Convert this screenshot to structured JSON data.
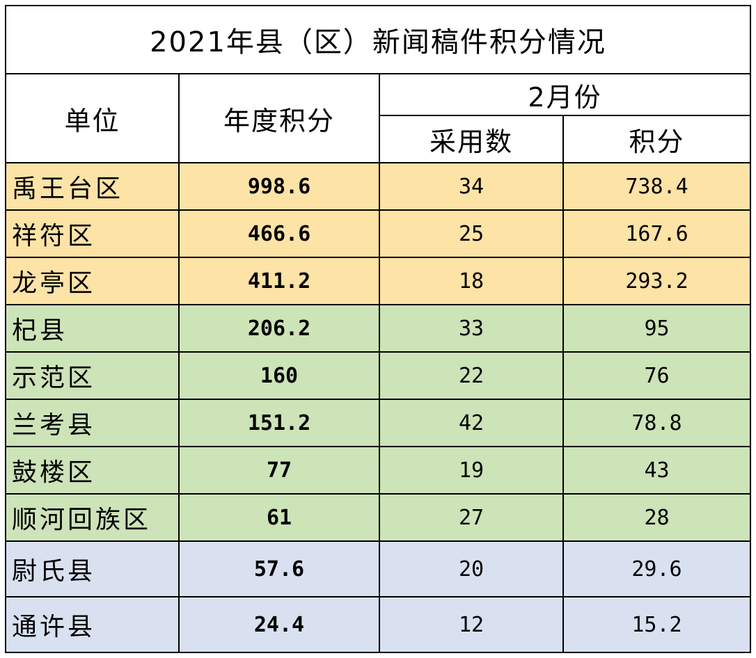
{
  "title": "2021年县（区）新闻稿件积分情况",
  "headers": {
    "unit": "单位",
    "annual_score": "年度积分",
    "month": "2月份",
    "adopted": "采用数",
    "score": "积分"
  },
  "colors": {
    "tier1": "#fde3a6",
    "tier2": "#cde3b8",
    "tier3": "#d9e0f0"
  },
  "rows": [
    {
      "unit": "禹王台区",
      "annual": "998.6",
      "adopted": "34",
      "score": "738.4",
      "tier": "tier1"
    },
    {
      "unit": "祥符区",
      "annual": "466.6",
      "adopted": "25",
      "score": "167.6",
      "tier": "tier1"
    },
    {
      "unit": "龙亭区",
      "annual": "411.2",
      "adopted": "18",
      "score": "293.2",
      "tier": "tier1"
    },
    {
      "unit": "杞县",
      "annual": "206.2",
      "adopted": "33",
      "score": "95",
      "tier": "tier2"
    },
    {
      "unit": "示范区",
      "annual": "160",
      "adopted": "22",
      "score": "76",
      "tier": "tier2"
    },
    {
      "unit": "兰考县",
      "annual": "151.2",
      "adopted": "42",
      "score": "78.8",
      "tier": "tier2"
    },
    {
      "unit": "鼓楼区",
      "annual": "77",
      "adopted": "19",
      "score": "43",
      "tier": "tier2"
    },
    {
      "unit": "顺河回族区",
      "annual": "61",
      "adopted": "27",
      "score": "28",
      "tier": "tier2"
    },
    {
      "unit": "尉氏县",
      "annual": "57.6",
      "adopted": "20",
      "score": "29.6",
      "tier": "tier3"
    },
    {
      "unit": "通许县",
      "annual": "24.4",
      "adopted": "12",
      "score": "15.2",
      "tier": "tier3"
    }
  ]
}
